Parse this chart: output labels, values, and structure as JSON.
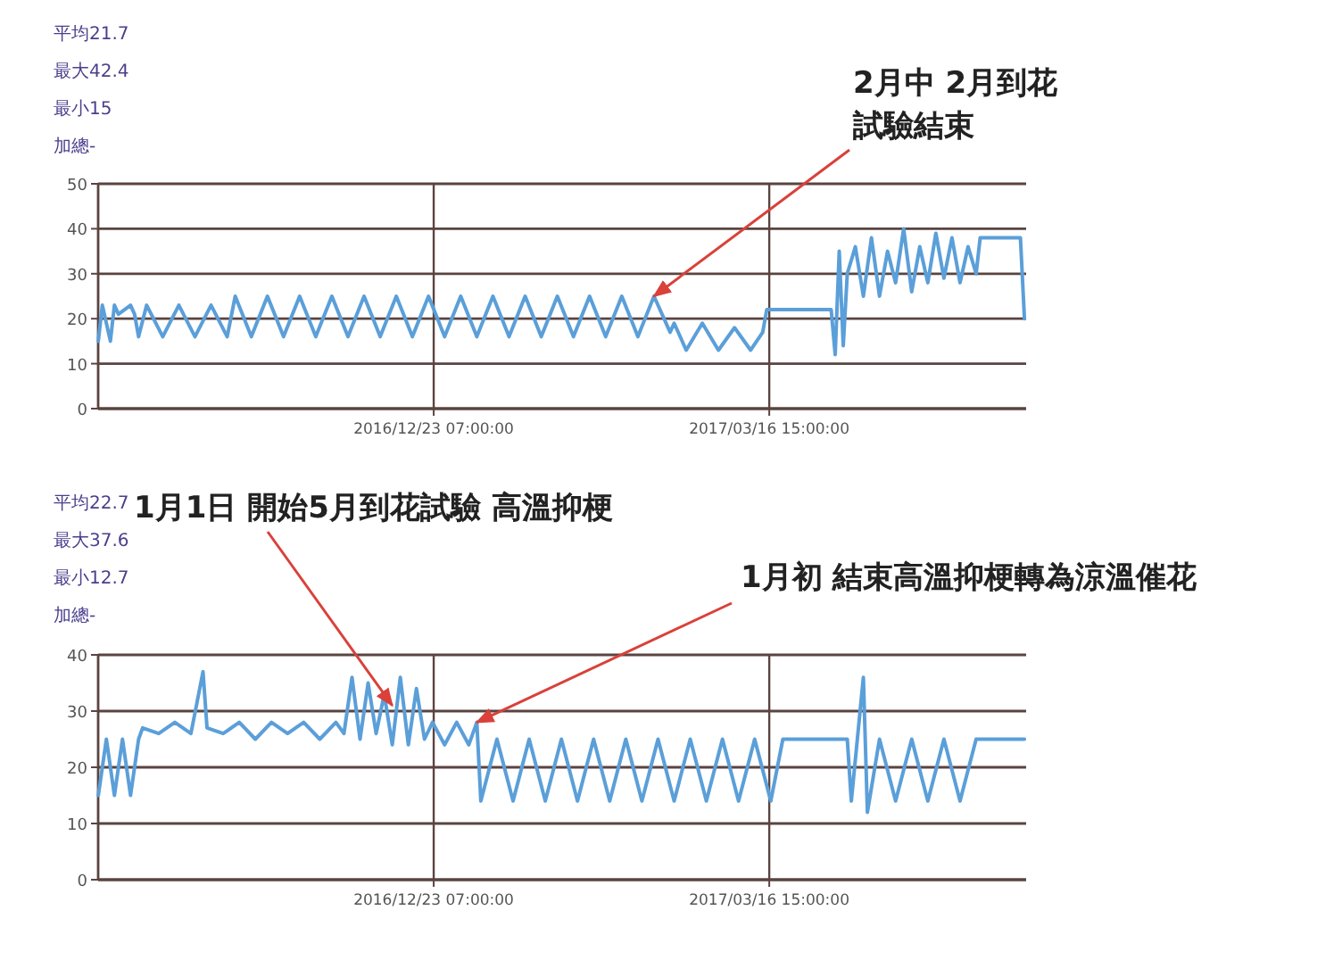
{
  "chart_data": [
    {
      "type": "line",
      "x": [
        "2016-10-01",
        "2016-10-02",
        "2016-10-04",
        "2016-10-05",
        "2016-10-06",
        "2016-10-09",
        "2016-10-10",
        "2016-10-11",
        "2016-10-13",
        "2016-10-17",
        "2016-10-21",
        "2016-10-25",
        "2016-10-29",
        "2016-11-02",
        "2016-11-04",
        "2016-11-08",
        "2016-11-12",
        "2016-11-16",
        "2016-11-20",
        "2016-11-24",
        "2016-11-28",
        "2016-12-02",
        "2016-12-06",
        "2016-12-10",
        "2016-12-14",
        "2016-12-18",
        "2016-12-22",
        "2016-12-26",
        "2016-12-30",
        "2017-01-03",
        "2017-01-07",
        "2017-01-11",
        "2017-01-15",
        "2017-01-19",
        "2017-01-23",
        "2017-01-27",
        "2017-01-31",
        "2017-02-04",
        "2017-02-08",
        "2017-02-12",
        "2017-02-16",
        "2017-02-20",
        "2017-02-21",
        "2017-02-24",
        "2017-02-28",
        "2017-03-04",
        "2017-03-08",
        "2017-03-12",
        "2017-03-15",
        "2017-03-16",
        "2017-04-01",
        "2017-04-02",
        "2017-04-03",
        "2017-04-04",
        "2017-04-05",
        "2017-04-07",
        "2017-04-09",
        "2017-04-11",
        "2017-04-13",
        "2017-04-15",
        "2017-04-17",
        "2017-04-19",
        "2017-04-21",
        "2017-04-23",
        "2017-04-25",
        "2017-04-27",
        "2017-04-29",
        "2017-05-01",
        "2017-05-03",
        "2017-05-05",
        "2017-05-07",
        "2017-05-08",
        "2017-05-12",
        "2017-05-18",
        "2017-05-19"
      ],
      "series": [
        {
          "color": "#5b9fd9",
          "values": [
            15,
            23,
            15,
            23,
            21,
            23,
            21,
            16,
            23,
            16,
            23,
            16,
            23,
            16,
            25,
            16,
            25,
            16,
            25,
            16,
            25,
            16,
            25,
            16,
            25,
            16,
            25,
            16,
            25,
            16,
            25,
            16,
            25,
            16,
            25,
            16,
            25,
            16,
            25,
            16,
            25,
            17,
            19,
            13,
            19,
            13,
            18,
            13,
            17,
            22,
            22,
            12,
            35,
            14,
            30,
            36,
            25,
            38,
            25,
            35,
            28,
            40,
            26,
            36,
            28,
            39,
            29,
            38,
            28,
            36,
            30,
            38,
            38,
            38,
            20
          ]
        }
      ],
      "xlim": [
        "2016-09-30T23:00",
        "2017-05-19T10:00"
      ],
      "xticks": [
        {
          "value": "2016-12-23T07:00",
          "label": "2016/12/23 07:00:00"
        },
        {
          "value": "2017-03-16T15:00",
          "label": "2017/03/16 15:00:00"
        }
      ],
      "ylim": [
        0,
        50
      ],
      "yticks": [
        0,
        10,
        20,
        30,
        40,
        50
      ],
      "grid": true,
      "annotations": [
        "平均21.7",
        "最大42.4",
        "最小15",
        "加總-",
        {
          "text": "2月中 2月到花試驗結束",
          "x": "2017-02-16",
          "y": 25
        }
      ]
    },
    {
      "type": "line",
      "x": [
        "2016-10-01",
        "2016-10-03",
        "2016-10-05",
        "2016-10-07",
        "2016-10-09",
        "2016-10-11",
        "2016-10-12",
        "2016-10-16",
        "2016-10-20",
        "2016-10-24",
        "2016-10-27",
        "2016-10-28",
        "2016-11-01",
        "2016-11-05",
        "2016-11-09",
        "2016-11-13",
        "2016-11-17",
        "2016-11-21",
        "2016-11-25",
        "2016-11-29",
        "2016-12-01",
        "2016-12-03",
        "2016-12-05",
        "2016-12-07",
        "2016-12-09",
        "2016-12-11",
        "2016-12-13",
        "2016-12-15",
        "2016-12-17",
        "2016-12-19",
        "2016-12-21",
        "2016-12-23",
        "2016-12-26",
        "2016-12-29",
        "2017-01-01",
        "2017-01-03",
        "2017-01-04",
        "2017-01-08",
        "2017-01-12",
        "2017-01-16",
        "2017-01-20",
        "2017-01-24",
        "2017-01-28",
        "2017-02-01",
        "2017-02-05",
        "2017-02-09",
        "2017-02-13",
        "2017-02-17",
        "2017-02-21",
        "2017-02-25",
        "2017-03-01",
        "2017-03-05",
        "2017-03-09",
        "2017-03-13",
        "2017-03-17",
        "2017-03-20",
        "2017-03-21",
        "2017-04-05",
        "2017-04-06",
        "2017-04-09",
        "2017-04-10",
        "2017-04-13",
        "2017-04-17",
        "2017-04-21",
        "2017-04-25",
        "2017-04-29",
        "2017-05-03",
        "2017-05-07",
        "2017-05-10",
        "2017-05-19"
      ],
      "series": [
        {
          "color": "#5b9fd9",
          "values": [
            15,
            25,
            15,
            25,
            15,
            25,
            27,
            26,
            28,
            26,
            37,
            27,
            26,
            28,
            25,
            28,
            26,
            28,
            25,
            28,
            26,
            36,
            25,
            35,
            26,
            33,
            24,
            36,
            24,
            34,
            25,
            28,
            24,
            28,
            24,
            28,
            14,
            25,
            14,
            25,
            14,
            25,
            14,
            25,
            14,
            25,
            14,
            25,
            14,
            25,
            14,
            25,
            14,
            25,
            14,
            25,
            25,
            25,
            14,
            36,
            12,
            25,
            14,
            25,
            14,
            25,
            14,
            25,
            25,
            25
          ]
        }
      ],
      "xlim": [
        "2016-09-30T23:00",
        "2017-05-19T10:00"
      ],
      "xticks": [
        {
          "value": "2016-12-23T07:00",
          "label": "2016/12/23 07:00:00"
        },
        {
          "value": "2017-03-16T15:00",
          "label": "2017/03/16 15:00:00"
        }
      ],
      "ylim": [
        0,
        40
      ],
      "yticks": [
        0,
        10,
        20,
        30,
        40
      ],
      "grid": true,
      "annotations": [
        "平均22.7",
        "最大37.6",
        "最小12.7",
        "加總-",
        {
          "text": "1月1日 開始5月到花試驗 高溫抑梗",
          "x": "2016-12-13",
          "y": 31
        },
        {
          "text": "1月初 結束高溫抑梗轉為涼溫催花",
          "x": "2017-01-03",
          "y": 28
        }
      ]
    }
  ]
}
